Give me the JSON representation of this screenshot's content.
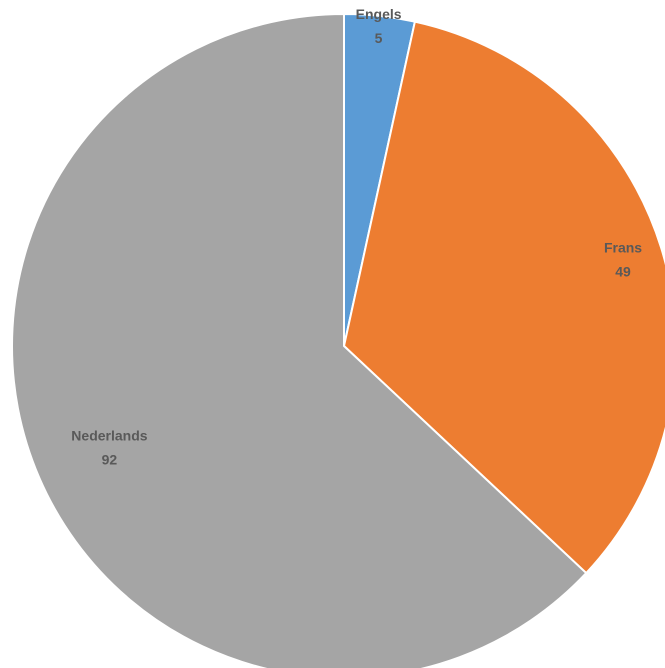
{
  "chart_data": {
    "type": "pie",
    "categories": [
      "Engels",
      "Frans",
      "Nederlands"
    ],
    "values": [
      5,
      49,
      92
    ],
    "colors": [
      "#5B9BD5",
      "#ED7D31",
      "#A5A5A5"
    ],
    "start_angle_deg": 0,
    "direction": "clockwise",
    "data_labels": true
  }
}
